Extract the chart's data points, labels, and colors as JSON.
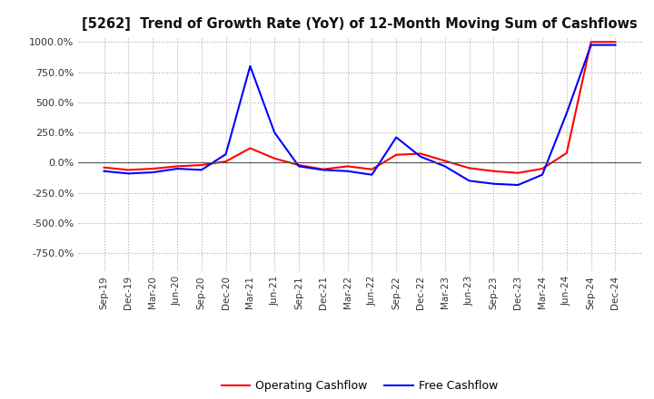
{
  "title": "[5262]  Trend of Growth Rate (YoY) of 12-Month Moving Sum of Cashflows",
  "xlabel": "",
  "ylabel": "",
  "ylim": [
    -900,
    1050
  ],
  "yticks": [
    -750,
    -500,
    -250,
    0,
    250,
    500,
    750,
    1000
  ],
  "background_color": "#ffffff",
  "grid_color": "#aaaaaa",
  "operating_color": "#ff0000",
  "free_color": "#0000ff",
  "legend_labels": [
    "Operating Cashflow",
    "Free Cashflow"
  ],
  "x_labels": [
    "Sep-19",
    "Dec-19",
    "Mar-20",
    "Jun-20",
    "Sep-20",
    "Dec-20",
    "Mar-21",
    "Jun-21",
    "Sep-21",
    "Dec-21",
    "Mar-22",
    "Jun-22",
    "Sep-22",
    "Dec-22",
    "Mar-23",
    "Jun-23",
    "Sep-23",
    "Dec-23",
    "Mar-24",
    "Jun-24",
    "Sep-24",
    "Dec-24"
  ],
  "operating_cashflow": [
    -40,
    -60,
    -50,
    -30,
    -20,
    10,
    120,
    35,
    -20,
    -55,
    -30,
    -55,
    65,
    75,
    15,
    -45,
    -70,
    -85,
    -50,
    80,
    1000,
    1000
  ],
  "free_cashflow": [
    -70,
    -90,
    -80,
    -50,
    -60,
    70,
    800,
    250,
    -30,
    -60,
    -70,
    -100,
    210,
    50,
    -30,
    -150,
    -175,
    -185,
    -100,
    410,
    975,
    975
  ]
}
